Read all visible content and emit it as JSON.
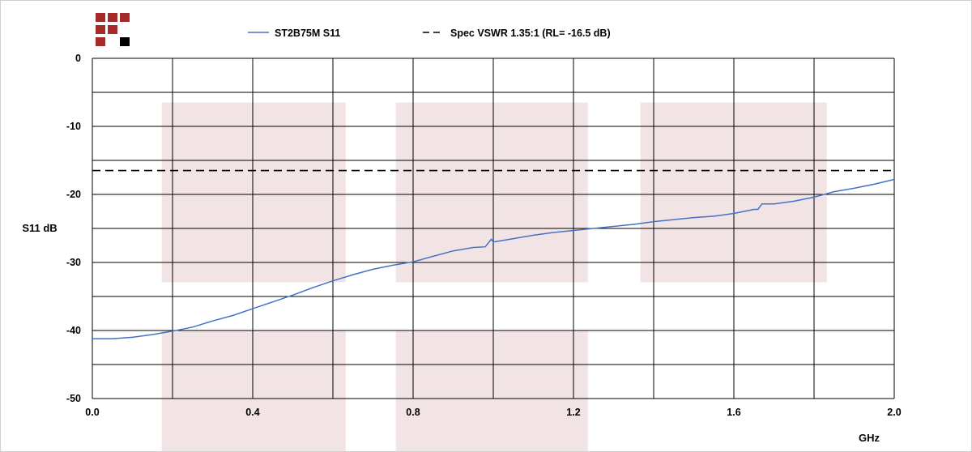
{
  "chart_data": {
    "type": "line",
    "title": "",
    "xlabel": "GHz",
    "ylabel": "S11 dB",
    "xlim": [
      0,
      2.0
    ],
    "ylim": [
      -50,
      0
    ],
    "x_ticks": [
      0.0,
      0.4,
      0.8,
      1.2,
      1.6,
      2.0
    ],
    "x_tick_labels": [
      "0.0",
      "0.4",
      "0.8",
      "1.2",
      "1.6",
      "2.0"
    ],
    "y_ticks": [
      0,
      -10,
      -20,
      -30,
      -40,
      -50
    ],
    "y_tick_labels": [
      "0",
      "-10",
      "-20",
      "-30",
      "-40",
      "-50"
    ],
    "minor_grid_x_step": 0.2,
    "minor_grid_y_step": 5,
    "grid": true,
    "legend_position": "top-center",
    "series": [
      {
        "name": "ST2B75M S11",
        "color": "#4472c4",
        "style": "solid",
        "x": [
          0.0,
          0.05,
          0.1,
          0.15,
          0.2,
          0.25,
          0.3,
          0.35,
          0.4,
          0.45,
          0.5,
          0.55,
          0.6,
          0.65,
          0.7,
          0.75,
          0.8,
          0.85,
          0.9,
          0.95,
          0.98,
          0.995,
          1.0,
          1.05,
          1.1,
          1.15,
          1.2,
          1.25,
          1.3,
          1.35,
          1.4,
          1.45,
          1.5,
          1.55,
          1.6,
          1.65,
          1.66,
          1.67,
          1.7,
          1.75,
          1.8,
          1.85,
          1.9,
          1.95,
          2.0
        ],
        "y": [
          -41.2,
          -41.2,
          -41.0,
          -40.6,
          -40.1,
          -39.5,
          -38.6,
          -37.8,
          -36.8,
          -35.8,
          -34.8,
          -33.7,
          -32.7,
          -31.8,
          -31.0,
          -30.4,
          -29.9,
          -29.1,
          -28.3,
          -27.8,
          -27.7,
          -26.6,
          -27.0,
          -26.5,
          -26.0,
          -25.6,
          -25.3,
          -25.0,
          -24.7,
          -24.4,
          -24.0,
          -23.7,
          -23.4,
          -23.2,
          -22.8,
          -22.2,
          -22.2,
          -21.4,
          -21.4,
          -21.0,
          -20.4,
          -19.6,
          -19.1,
          -18.5,
          -17.8
        ]
      },
      {
        "name": "Spec VSWR 1.35:1 (RL= -16.5 dB)",
        "color": "#000000",
        "style": "dashed",
        "x": [
          0.0,
          2.0
        ],
        "y": [
          -16.5,
          -16.5
        ]
      }
    ],
    "shaded_bands": [
      {
        "x": [
          0.173,
          0.632
        ],
        "y_top": -6.5,
        "y_bottom": -32.9
      },
      {
        "x": [
          0.757,
          1.236
        ],
        "y_top": -6.5,
        "y_bottom": -32.9
      },
      {
        "x": [
          1.367,
          1.832
        ],
        "y_top": -6.5,
        "y_bottom": -32.9
      },
      {
        "x": [
          0.173,
          0.632
        ],
        "y_top": -40.0,
        "y_bottom": -60.0
      },
      {
        "x": [
          0.757,
          1.236
        ],
        "y_top": -40.0,
        "y_bottom": -60.0
      }
    ],
    "band_color": "#f2e4e4"
  },
  "logo": {
    "colors": [
      "#a52a2a",
      "#000000"
    ]
  }
}
